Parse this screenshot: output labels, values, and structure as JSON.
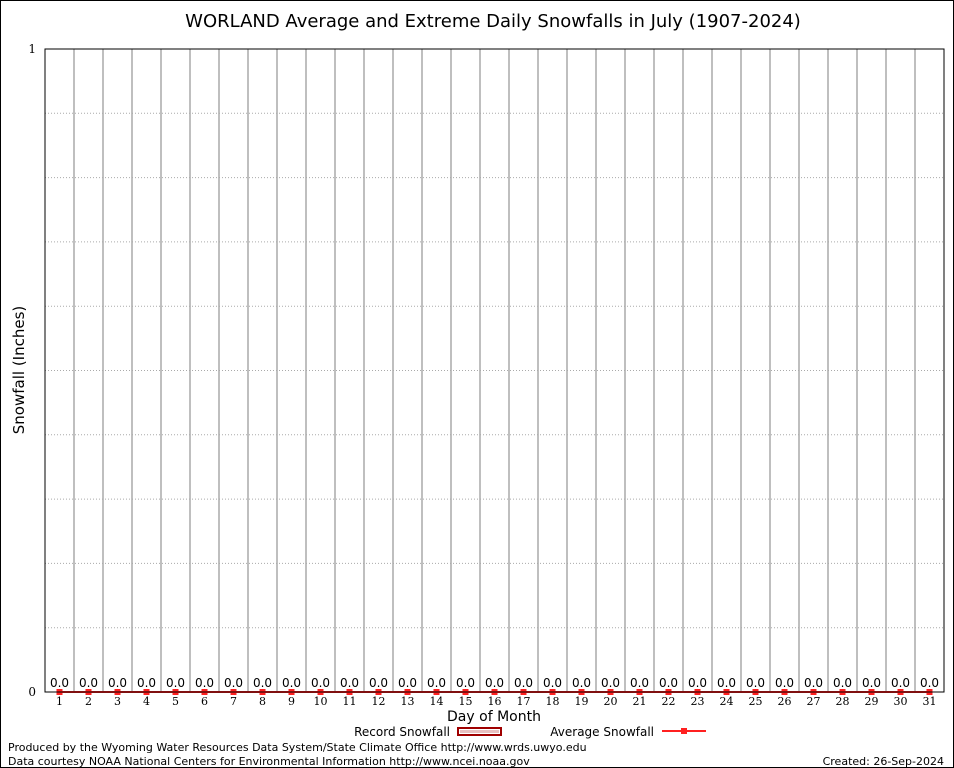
{
  "chart_data": {
    "type": "bar",
    "title": "WORLAND Average and Extreme Daily Snowfalls in July (1907-2024)",
    "xlabel": "Day of Month",
    "ylabel": "Snowfall (Inches)",
    "ylim": [
      0,
      1
    ],
    "y_ticks": [
      "0",
      "1"
    ],
    "grid": true,
    "categories": [
      1,
      2,
      3,
      4,
      5,
      6,
      7,
      8,
      9,
      10,
      11,
      12,
      13,
      14,
      15,
      16,
      17,
      18,
      19,
      20,
      21,
      22,
      23,
      24,
      25,
      26,
      27,
      28,
      29,
      30,
      31
    ],
    "series": [
      {
        "name": "Record Snowfall",
        "type": "bar",
        "color": "#a00000",
        "values": [
          0,
          0,
          0,
          0,
          0,
          0,
          0,
          0,
          0,
          0,
          0,
          0,
          0,
          0,
          0,
          0,
          0,
          0,
          0,
          0,
          0,
          0,
          0,
          0,
          0,
          0,
          0,
          0,
          0,
          0,
          0
        ],
        "labels": [
          "0.0",
          "0.0",
          "0.0",
          "0.0",
          "0.0",
          "0.0",
          "0.0",
          "0.0",
          "0.0",
          "0.0",
          "0.0",
          "0.0",
          "0.0",
          "0.0",
          "0.0",
          "0.0",
          "0.0",
          "0.0",
          "0.0",
          "0.0",
          "0.0",
          "0.0",
          "0.0",
          "0.0",
          "0.0",
          "0.0",
          "0.0",
          "0.0",
          "0.0",
          "0.0",
          "0.0"
        ]
      },
      {
        "name": "Average Snowfall",
        "type": "line",
        "color": "#ff2020",
        "values": [
          0,
          0,
          0,
          0,
          0,
          0,
          0,
          0,
          0,
          0,
          0,
          0,
          0,
          0,
          0,
          0,
          0,
          0,
          0,
          0,
          0,
          0,
          0,
          0,
          0,
          0,
          0,
          0,
          0,
          0,
          0
        ]
      }
    ],
    "legend": "bottom"
  },
  "footer": {
    "produced": "Produced by the Wyoming Water Resources Data System/State Climate Office http://www.wrds.uwyo.edu",
    "courtesy": "Data courtesy NOAA National Centers for Environmental Information http://www.ncei.noaa.gov",
    "created": "Created: 26-Sep-2024"
  }
}
